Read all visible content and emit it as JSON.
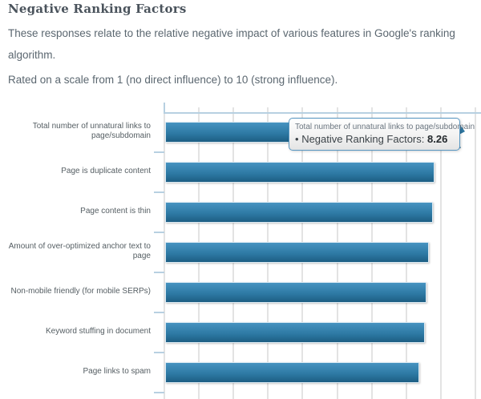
{
  "page": {
    "title": "Negative Ranking Factors",
    "description": "These responses relate to the relative negative impact of various features in Google's ranking algorithm.",
    "scale_note": "Rated on a scale from 1 (no direct influence) to 10 (strong influence)."
  },
  "chart_data": {
    "type": "bar",
    "orientation": "horizontal",
    "title": "Negative Ranking Factors",
    "series_name": "Negative Ranking Factors",
    "categories": [
      "Total number of unnatural links to page/subdomain",
      "Page is duplicate content",
      "Page content is thin",
      "Amount of over-optimized anchor text to page",
      "Non-mobile friendly (for mobile SERPs)",
      "Keyword stuffing in document",
      "Page links to spam"
    ],
    "values": [
      8.26,
      7.75,
      7.7,
      7.58,
      7.52,
      7.46,
      7.32
    ],
    "xlim": [
      0,
      10
    ],
    "gridline_step": 1,
    "grid": true,
    "legend": "none",
    "colors": {
      "bar_top": "#4793c0",
      "bar_bottom": "#1d5e83",
      "axis": "#b7d0e1",
      "gridline": "#e3e3e3",
      "label_text": "#555e63"
    },
    "tooltip": {
      "category": "Total number of unnatural links to page/subdomain",
      "bullet": "•",
      "series_label": "Negative Ranking Factors:",
      "value": "8.26"
    }
  }
}
